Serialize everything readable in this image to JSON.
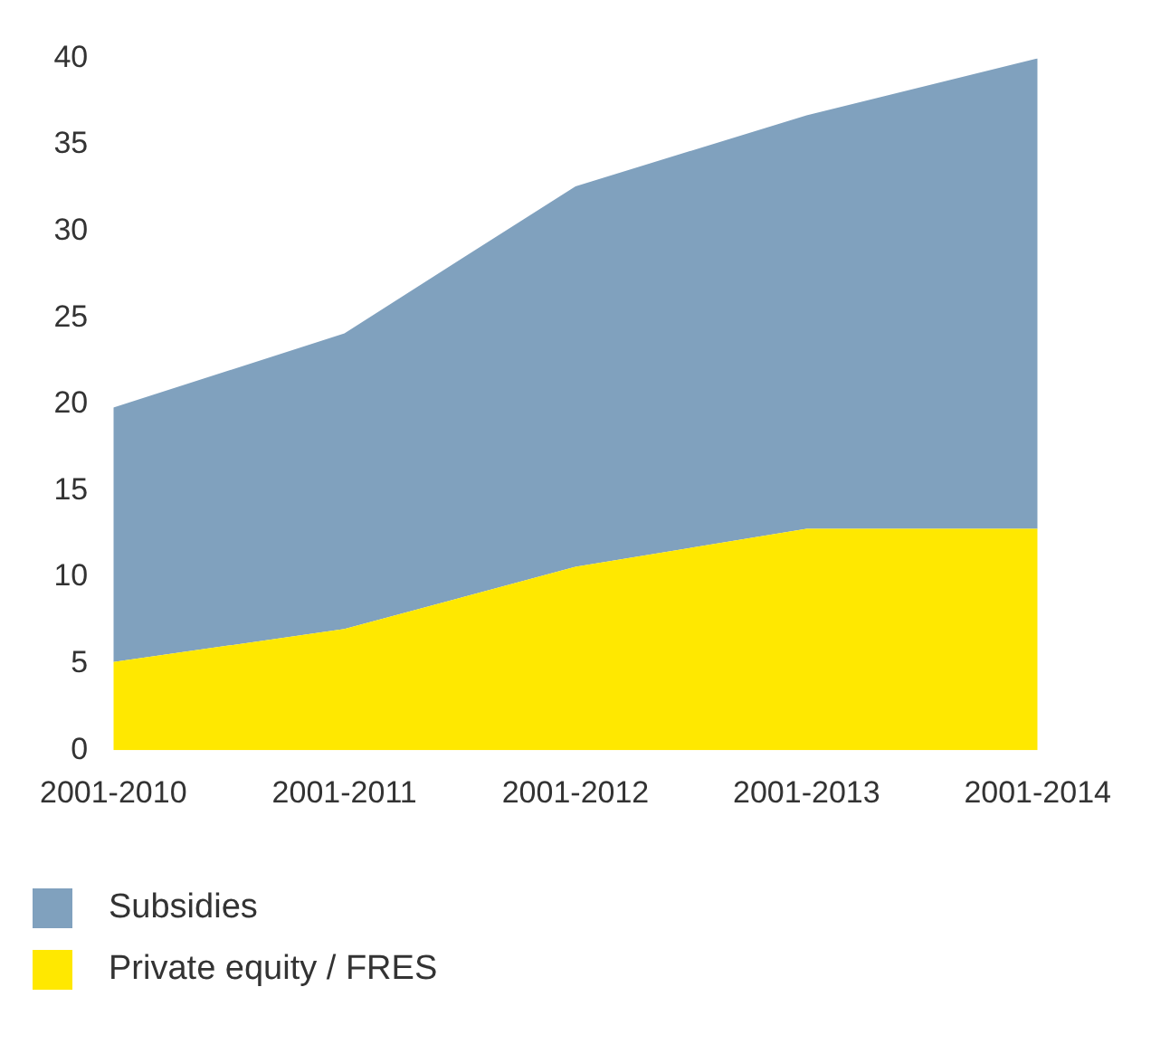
{
  "chart_data": {
    "type": "area",
    "stacked": true,
    "categories": [
      "2001-2010",
      "2001-2011",
      "2001-2012",
      "2001-2013",
      "2001-2014"
    ],
    "series": [
      {
        "name": "Private equity / FRES",
        "color": "#ffe800",
        "values": [
          5.1,
          7.0,
          10.6,
          12.8,
          12.8
        ]
      },
      {
        "name": "Subsidies",
        "color": "#80a1be",
        "values": [
          14.7,
          17.1,
          22.0,
          23.9,
          27.2
        ]
      }
    ],
    "ylim": [
      0,
      40
    ],
    "yticks": [
      0,
      5,
      10,
      15,
      20,
      25,
      30,
      35,
      40
    ],
    "grid": false,
    "legend": "bottom left"
  }
}
